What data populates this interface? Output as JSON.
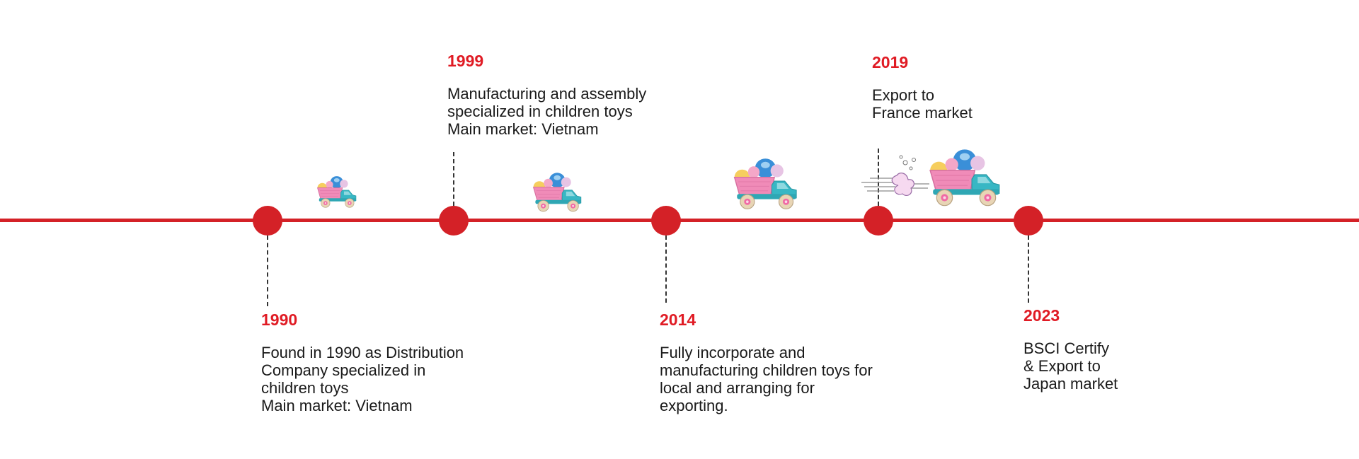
{
  "milestones": [
    {
      "year": "1990",
      "lines": [
        "Found in 1990 as Distribution",
        "Company specialized in",
        "children toys",
        "Main market: Vietnam"
      ]
    },
    {
      "year": "1999",
      "lines": [
        "Manufacturing and assembly",
        "specialized in children toys",
        "Main market: Vietnam"
      ]
    },
    {
      "year": "2014",
      "lines": [
        "Fully incorporate and",
        "manufacturing children toys for",
        "local and arranging for",
        "exporting."
      ]
    },
    {
      "year": "2019",
      "lines": [
        "Export to",
        "France market"
      ]
    },
    {
      "year": "2023",
      "lines": [
        "BSCI Certify",
        "& Export to",
        "Japan market"
      ]
    }
  ],
  "colors": {
    "accent": "#d42127",
    "year": "#e01b24",
    "text": "#1a1a1a",
    "truck_body": "#f08bb8",
    "truck_cab": "#38b7c4",
    "wheel": "#e8d5b5"
  },
  "icons": [
    "toy-truck-icon",
    "speed-lines-icon"
  ]
}
